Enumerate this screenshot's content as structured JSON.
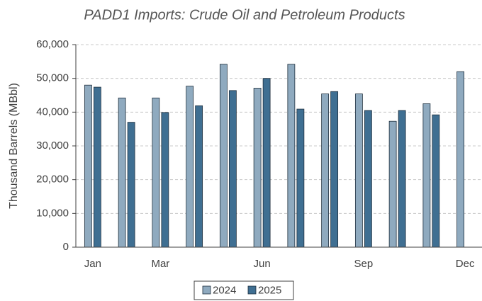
{
  "chart_data": {
    "type": "bar",
    "title": "PADD1 Imports: Crude Oil and Petroleum Products",
    "y_label": "Thousand Barrels (MBbl)",
    "categories": [
      "Jan",
      null,
      "Mar",
      null,
      null,
      "Jun",
      null,
      null,
      "Sep",
      null,
      null,
      "Dec"
    ],
    "series": [
      {
        "name": "2024",
        "color": "#8faabf",
        "values": [
          48000,
          44200,
          44200,
          47700,
          54200,
          47100,
          54200,
          45400,
          45400,
          37300,
          42500,
          52000
        ]
      },
      {
        "name": "2025",
        "color": "#3f6f92",
        "values": [
          47400,
          37000,
          39900,
          41900,
          46400,
          50000,
          40900,
          46100,
          40500,
          40500,
          39200,
          null
        ]
      }
    ],
    "ylim": [
      0,
      60000
    ],
    "yticks": [
      0,
      {
        "value": 10000,
        "label": "10,000"
      },
      {
        "value": 20000,
        "label": "20,000"
      },
      {
        "value": 30000,
        "label": "30,000"
      },
      {
        "value": 40000,
        "label": "40,000"
      },
      {
        "value": 50000,
        "label": "50,000"
      },
      {
        "value": 60000,
        "label": "60,000"
      }
    ],
    "grid": true,
    "legend": "bottom"
  }
}
